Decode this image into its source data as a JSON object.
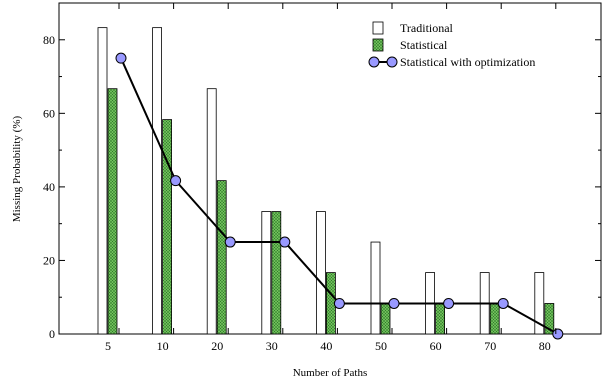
{
  "chart_data": {
    "type": "bar",
    "categories": [
      "5",
      "10",
      "20",
      "30",
      "40",
      "50",
      "60",
      "70",
      "80"
    ],
    "series": [
      {
        "name": "Traditional",
        "kind": "bar",
        "values": [
          83.3,
          83.3,
          66.7,
          33.3,
          33.3,
          25,
          16.7,
          16.7,
          16.7
        ],
        "color": "#ffffff"
      },
      {
        "name": "Statistical",
        "kind": "bar",
        "values": [
          66.7,
          58.3,
          41.7,
          33.3,
          16.7,
          8.3,
          8.3,
          8.3,
          8.3
        ],
        "color": "#6fbf5a"
      },
      {
        "name": "Statistical with optimization",
        "kind": "line",
        "values": [
          75,
          41.7,
          25,
          25,
          8.3,
          8.3,
          8.3,
          8.3,
          0
        ],
        "color": "#9999ff"
      }
    ],
    "xlabel": "Number of Paths",
    "ylabel": "Missing Probability (%)",
    "ylim": [
      0,
      90
    ],
    "yticks": [
      0,
      20,
      40,
      60,
      80
    ],
    "legend_position": "top-right",
    "grid": false
  }
}
